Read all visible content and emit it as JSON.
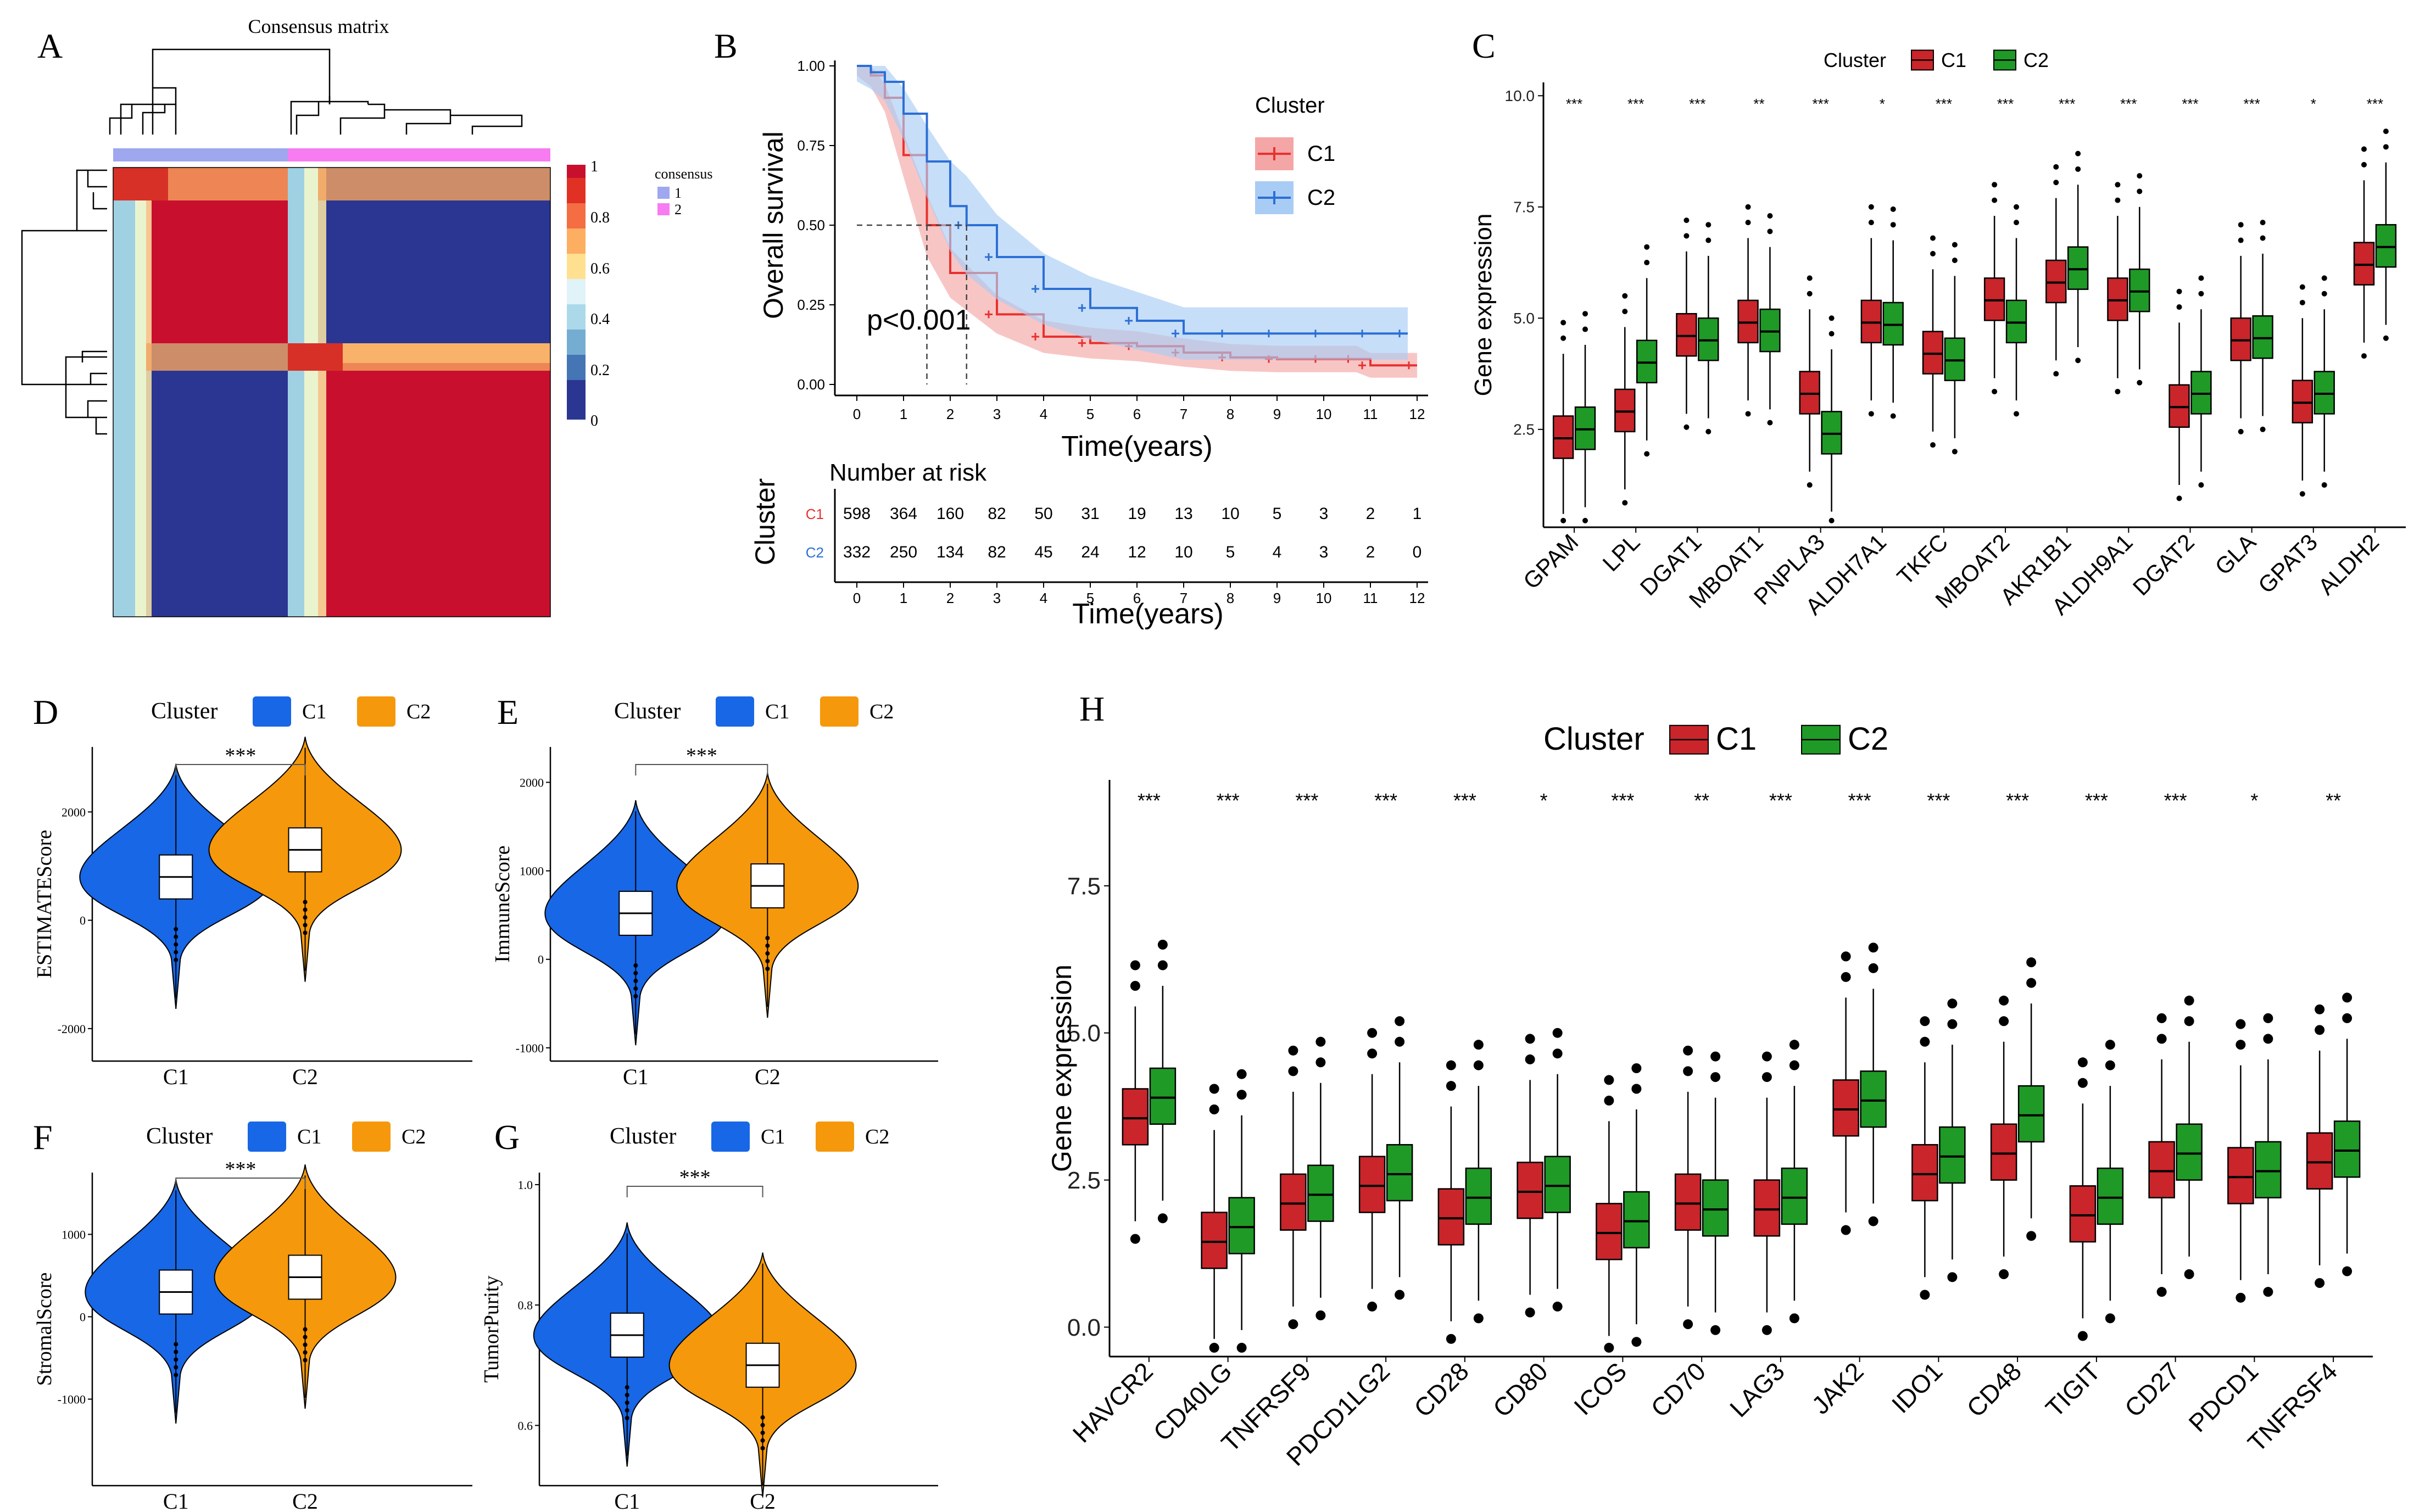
{
  "colors": {
    "c1_box": "#c9252b",
    "c2_box": "#1f9a27",
    "km_c1": "#e8312f",
    "km_c2": "#2b6fd6",
    "km_c1_band": "#f4a6a6",
    "km_c2_band": "#a9ccf4",
    "violin_c1": "#1767e6",
    "violin_c2": "#f5980b",
    "consensus_1": "#9fa7ef",
    "consensus_2": "#f77cf1"
  },
  "panel_labels": {
    "A": "A",
    "B": "B",
    "C": "C",
    "D": "D",
    "E": "E",
    "F": "F",
    "G": "G",
    "H": "H"
  },
  "panelA": {
    "title": "Consensus matrix",
    "legend_title": "consensus",
    "legend_items": [
      "1",
      "2"
    ],
    "colorbar_ticks": [
      "1",
      "0.8",
      "0.6",
      "0.4",
      "0.2",
      "0"
    ]
  },
  "chart_data": [
    {
      "id": "A",
      "type": "heatmap",
      "title": "Consensus matrix",
      "clusters": [
        {
          "name": "1",
          "fraction": 0.4
        },
        {
          "name": "2",
          "fraction": 0.6
        }
      ],
      "color_scale": [
        0,
        1
      ]
    },
    {
      "id": "B",
      "type": "line",
      "title": "",
      "xlabel": "Time(years)",
      "ylabel": "Overall survival",
      "xlim": [
        0,
        12
      ],
      "ylim": [
        0,
        1
      ],
      "xticks": [
        "0",
        "1",
        "2",
        "3",
        "4",
        "5",
        "6",
        "7",
        "8",
        "9",
        "10",
        "11",
        "12"
      ],
      "yticks": [
        "0.00",
        "0.25",
        "0.50",
        "0.75",
        "1.00"
      ],
      "legend_title": "Cluster",
      "pvalue": "p<0.001",
      "median_survival": {
        "C1": 1.5,
        "C2": 2.35
      },
      "series": [
        {
          "name": "C1",
          "x": [
            0,
            0.3,
            0.6,
            1,
            1.5,
            2,
            3,
            4,
            5,
            6,
            7,
            8,
            9,
            10,
            10.7,
            11,
            12
          ],
          "y": [
            1,
            0.97,
            0.9,
            0.72,
            0.5,
            0.35,
            0.22,
            0.15,
            0.13,
            0.12,
            0.1,
            0.085,
            0.08,
            0.08,
            0.08,
            0.06,
            0.06
          ]
        },
        {
          "name": "C2",
          "x": [
            0,
            0.3,
            0.6,
            1,
            1.5,
            2,
            2.35,
            3,
            4,
            5,
            6,
            7,
            8,
            9,
            10,
            11,
            11.8
          ],
          "y": [
            1,
            0.98,
            0.95,
            0.85,
            0.7,
            0.56,
            0.5,
            0.4,
            0.3,
            0.24,
            0.2,
            0.16,
            0.16,
            0.16,
            0.16,
            0.16,
            0.16
          ]
        }
      ],
      "risk_table": {
        "title": "Number at risk",
        "ylabel": "Cluster",
        "xlabel": "Time(years)",
        "rows": [
          {
            "name": "C1",
            "values": [
              "598",
              "364",
              "160",
              "82",
              "50",
              "31",
              "19",
              "13",
              "10",
              "5",
              "3",
              "2",
              "1"
            ]
          },
          {
            "name": "C2",
            "values": [
              "332",
              "250",
              "134",
              "82",
              "45",
              "24",
              "12",
              "10",
              "5",
              "4",
              "3",
              "2",
              "0"
            ]
          }
        ]
      }
    },
    {
      "id": "C",
      "type": "bar",
      "subtype": "boxplot",
      "legend_title": "Cluster",
      "ylabel": "Gene expression",
      "ylim": [
        0.3,
        10.3
      ],
      "yticks": [
        "2.5",
        "5.0",
        "7.5",
        "10.0"
      ],
      "categories": [
        "GPAM",
        "LPL",
        "DGAT1",
        "MBOAT1",
        "PNPLA3",
        "ALDH7A1",
        "TKFC",
        "MBOAT2",
        "AKR1B1",
        "ALDH9A1",
        "DGAT2",
        "GLA",
        "GPAT3",
        "ALDH2"
      ],
      "significance": [
        "***",
        "***",
        "***",
        "**",
        "***",
        "*",
        "***",
        "***",
        "***",
        "***",
        "***",
        "***",
        "*",
        "***"
      ],
      "series": [
        {
          "name": "C1",
          "medians": [
            2.3,
            2.9,
            4.6,
            4.9,
            3.3,
            4.9,
            4.2,
            5.4,
            5.8,
            5.4,
            3.0,
            4.5,
            3.1,
            6.2
          ]
        },
        {
          "name": "C2",
          "medians": [
            2.5,
            4.0,
            4.5,
            4.7,
            2.4,
            4.85,
            4.05,
            4.9,
            6.1,
            5.6,
            3.3,
            4.55,
            3.3,
            6.6
          ]
        }
      ]
    },
    {
      "id": "D",
      "type": "bar",
      "subtype": "violin",
      "legend_title": "Cluster",
      "ylabel": "ESTIMATEScore",
      "categories": [
        "C1",
        "C2"
      ],
      "yticks": [
        "2000",
        "0",
        "-2000"
      ],
      "ylim": [
        -2600,
        3200
      ],
      "significance": "***",
      "medians": [
        800,
        1300
      ]
    },
    {
      "id": "E",
      "type": "bar",
      "subtype": "violin",
      "legend_title": "Cluster",
      "ylabel": "ImmuneScore",
      "categories": [
        "C1",
        "C2"
      ],
      "yticks": [
        "2000",
        "1000",
        "0",
        "-1000"
      ],
      "ylim": [
        -1150,
        2400
      ],
      "significance": "***",
      "medians": [
        520,
        830
      ]
    },
    {
      "id": "F",
      "type": "bar",
      "subtype": "violin",
      "legend_title": "Cluster",
      "ylabel": "StromalScore",
      "categories": [
        "C1",
        "C2"
      ],
      "yticks": [
        "1000",
        "0",
        "-1000"
      ],
      "ylim": [
        -2050,
        1750
      ],
      "significance": "***",
      "medians": [
        300,
        480
      ]
    },
    {
      "id": "G",
      "type": "bar",
      "subtype": "violin",
      "legend_title": "Cluster",
      "ylabel": "TumorPurity",
      "categories": [
        "C1",
        "C2"
      ],
      "yticks": [
        "1.0",
        "0.8",
        "0.6"
      ],
      "ylim": [
        0.5,
        1.02
      ],
      "significance": "***",
      "medians": [
        0.75,
        0.7
      ]
    },
    {
      "id": "H",
      "type": "bar",
      "subtype": "boxplot",
      "legend_title": "Cluster",
      "ylabel": "Gene expression",
      "ylim": [
        -0.5,
        9.3
      ],
      "yticks": [
        "0.0",
        "2.5",
        "5.0",
        "7.5"
      ],
      "categories": [
        "HAVCR2",
        "CD40LG",
        "TNFRSF9",
        "PDCD1LG2",
        "CD28",
        "CD80",
        "ICOS",
        "CD70",
        "LAG3",
        "JAK2",
        "IDO1",
        "CD48",
        "TIGIT",
        "CD27",
        "PDCD1",
        "TNFRSF4"
      ],
      "significance": [
        "***",
        "***",
        "***",
        "***",
        "***",
        "*",
        "***",
        "**",
        "***",
        "***",
        "***",
        "***",
        "***",
        "***",
        "*",
        "**"
      ],
      "series": [
        {
          "name": "C1",
          "medians": [
            3.55,
            1.45,
            2.1,
            2.4,
            1.85,
            2.3,
            1.6,
            2.1,
            2.0,
            3.7,
            2.6,
            2.95,
            1.9,
            2.65,
            2.55,
            2.8
          ]
        },
        {
          "name": "C2",
          "medians": [
            3.9,
            1.7,
            2.25,
            2.6,
            2.2,
            2.4,
            1.8,
            2.0,
            2.2,
            3.85,
            2.9,
            3.6,
            2.2,
            2.95,
            2.65,
            3.0
          ]
        }
      ]
    }
  ]
}
